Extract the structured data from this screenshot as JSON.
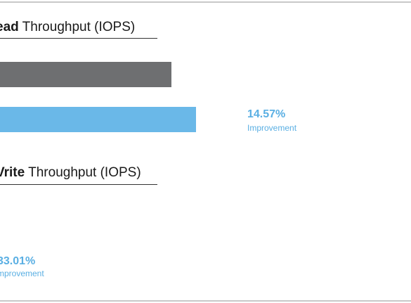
{
  "colors": {
    "baseline": "#6e6f71",
    "improved": "#6ab8e8",
    "accent_text": "#5aafe3",
    "frame": "#c8c8c8"
  },
  "chart_data": [
    {
      "type": "bar",
      "title_bold": "ead",
      "title_rest": " Throughput (IOPS)",
      "orientation": "horizontal",
      "series": [
        {
          "name": "",
          "values": [
            1.0
          ],
          "color": "#6e6f71"
        },
        {
          "name": "",
          "values": [
            1.1457
          ],
          "color": "#6ab8e8"
        }
      ],
      "annotation": {
        "percent": "14.57%",
        "label": "Improvement"
      }
    },
    {
      "type": "bar",
      "title_bold": "Vrite",
      "title_rest": " Throughput (IOPS)",
      "orientation": "horizontal",
      "annotation": {
        "percent": "33.01%",
        "label": "mprovement"
      }
    }
  ]
}
